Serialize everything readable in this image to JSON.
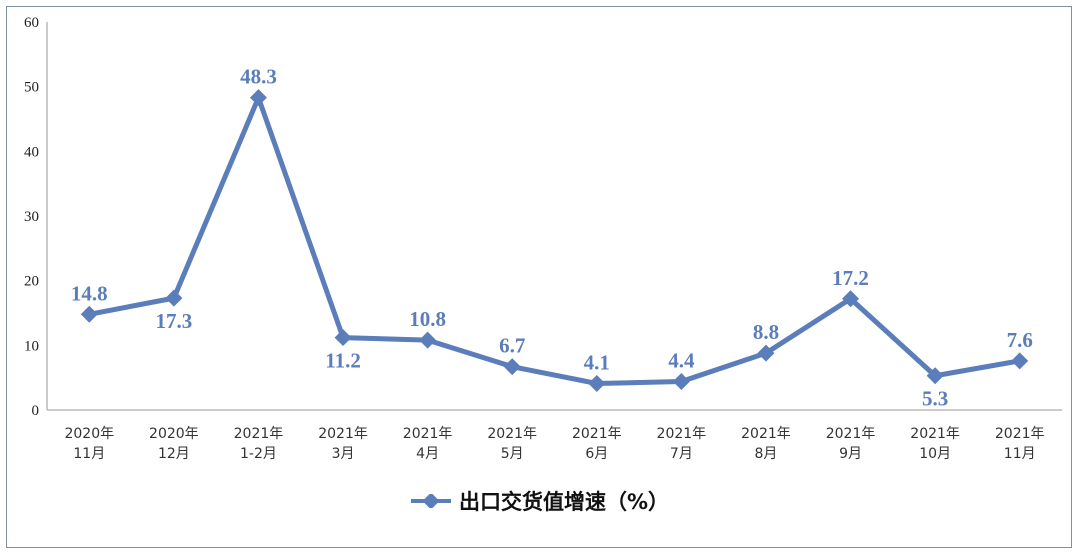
{
  "chart_data": {
    "type": "line",
    "categories": [
      [
        "2020年",
        "11月"
      ],
      [
        "2020年",
        "12月"
      ],
      [
        "2021年",
        "1-2月"
      ],
      [
        "2021年",
        "3月"
      ],
      [
        "2021年",
        "4月"
      ],
      [
        "2021年",
        "5月"
      ],
      [
        "2021年",
        "6月"
      ],
      [
        "2021年",
        "7月"
      ],
      [
        "2021年",
        "8月"
      ],
      [
        "2021年",
        "9月"
      ],
      [
        "2021年",
        "10月"
      ],
      [
        "2021年",
        "11月"
      ]
    ],
    "series": [
      {
        "name": "出口交货值增速（%）",
        "values": [
          14.8,
          17.3,
          48.3,
          11.2,
          10.8,
          6.7,
          4.1,
          4.4,
          8.8,
          17.2,
          5.3,
          7.6
        ],
        "color": "#5b7dba"
      }
    ],
    "ylim": [
      0,
      60
    ],
    "yticks": [
      0,
      10,
      20,
      30,
      40,
      50,
      60
    ],
    "label_positions": [
      "above",
      "below",
      "above",
      "below",
      "above",
      "above",
      "above",
      "above",
      "above",
      "above",
      "below",
      "above"
    ],
    "title": "",
    "xlabel": "",
    "ylabel": "",
    "grid": false,
    "legend": "bottom-center"
  }
}
